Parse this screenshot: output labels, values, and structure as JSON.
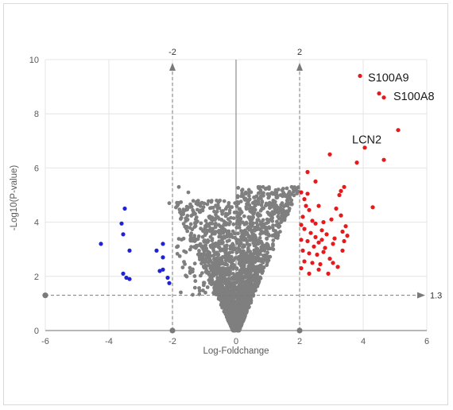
{
  "chart_data": {
    "type": "scatter",
    "title": "",
    "xlabel": "Log-Foldchange",
    "ylabel": "-Log10(P-value)",
    "xlim": [
      -6,
      6
    ],
    "ylim": [
      0,
      10
    ],
    "x_ticks": [
      "-6",
      "-4",
      "-2",
      "0",
      "2",
      "4",
      "6"
    ],
    "y_ticks": [
      "0",
      "2",
      "4",
      "6",
      "8",
      "10"
    ],
    "grid": true,
    "colors": {
      "down": "#1f23d6",
      "up": "#e8191b",
      "ns": "#7f7f7f",
      "threshold": "#7a7a7a"
    },
    "thresholds": {
      "vertical": [
        {
          "x": -2,
          "label": "-2"
        },
        {
          "x": 2,
          "label": "2"
        }
      ],
      "horizontal": [
        {
          "y": 1.3,
          "label": "1.3"
        }
      ]
    },
    "annotations": [
      {
        "text": "S100A9",
        "x": 4.15,
        "y": 9.2
      },
      {
        "text": "S100A8",
        "x": 4.95,
        "y": 8.5
      },
      {
        "text": "LCN2",
        "x": 3.65,
        "y": 6.9
      }
    ],
    "series": [
      {
        "group": "down",
        "points": [
          [
            -4.25,
            3.2
          ],
          [
            -3.5,
            4.5
          ],
          [
            -3.6,
            3.95
          ],
          [
            -3.55,
            3.55
          ],
          [
            -3.35,
            2.95
          ],
          [
            -3.55,
            2.1
          ],
          [
            -3.45,
            1.95
          ],
          [
            -3.35,
            1.9
          ],
          [
            -2.5,
            2.95
          ],
          [
            -2.3,
            3.2
          ],
          [
            -2.3,
            2.7
          ],
          [
            -2.4,
            2.2
          ],
          [
            -2.3,
            2.25
          ],
          [
            -2.1,
            1.75
          ],
          [
            -2.15,
            1.95
          ]
        ]
      },
      {
        "group": "up",
        "points": [
          [
            3.9,
            9.4
          ],
          [
            4.5,
            8.75
          ],
          [
            4.65,
            8.6
          ],
          [
            5.1,
            7.4
          ],
          [
            4.05,
            6.75
          ],
          [
            4.65,
            6.3
          ],
          [
            3.8,
            6.2
          ],
          [
            2.95,
            6.5
          ],
          [
            3.4,
            5.3
          ],
          [
            4.3,
            4.55
          ],
          [
            2.25,
            5.85
          ],
          [
            2.5,
            5.5
          ],
          [
            2.05,
            5.1
          ],
          [
            2.25,
            5.05
          ],
          [
            2.15,
            4.85
          ],
          [
            3.3,
            5.15
          ],
          [
            3.25,
            5.0
          ],
          [
            2.3,
            4.45
          ],
          [
            2.6,
            4.6
          ],
          [
            3.15,
            4.5
          ],
          [
            2.1,
            4.2
          ],
          [
            2.4,
            4.05
          ],
          [
            2.75,
            4.0
          ],
          [
            3.0,
            4.1
          ],
          [
            3.3,
            4.25
          ],
          [
            2.15,
            3.75
          ],
          [
            2.35,
            3.6
          ],
          [
            2.5,
            3.45
          ],
          [
            2.7,
            3.7
          ],
          [
            2.85,
            3.55
          ],
          [
            3.1,
            3.4
          ],
          [
            3.35,
            3.65
          ],
          [
            3.5,
            3.5
          ],
          [
            2.05,
            3.35
          ],
          [
            2.25,
            3.3
          ],
          [
            2.45,
            3.1
          ],
          [
            2.6,
            3.25
          ],
          [
            2.8,
            3.05
          ],
          [
            3.05,
            3.2
          ],
          [
            3.4,
            3.3
          ],
          [
            2.1,
            2.95
          ],
          [
            2.3,
            2.85
          ],
          [
            2.55,
            2.8
          ],
          [
            2.75,
            2.9
          ],
          [
            2.95,
            2.65
          ],
          [
            3.35,
            2.95
          ],
          [
            2.15,
            2.55
          ],
          [
            2.4,
            2.5
          ],
          [
            2.65,
            2.45
          ],
          [
            3.05,
            2.5
          ],
          [
            2.05,
            2.3
          ],
          [
            2.3,
            2.1
          ],
          [
            2.6,
            2.25
          ],
          [
            2.9,
            2.1
          ],
          [
            3.2,
            2.35
          ],
          [
            2.2,
            4.6
          ],
          [
            2.05,
            3.9
          ],
          [
            2.7,
            3.35
          ],
          [
            3.45,
            3.85
          ],
          [
            2.5,
            3.95
          ]
        ]
      }
    ]
  }
}
